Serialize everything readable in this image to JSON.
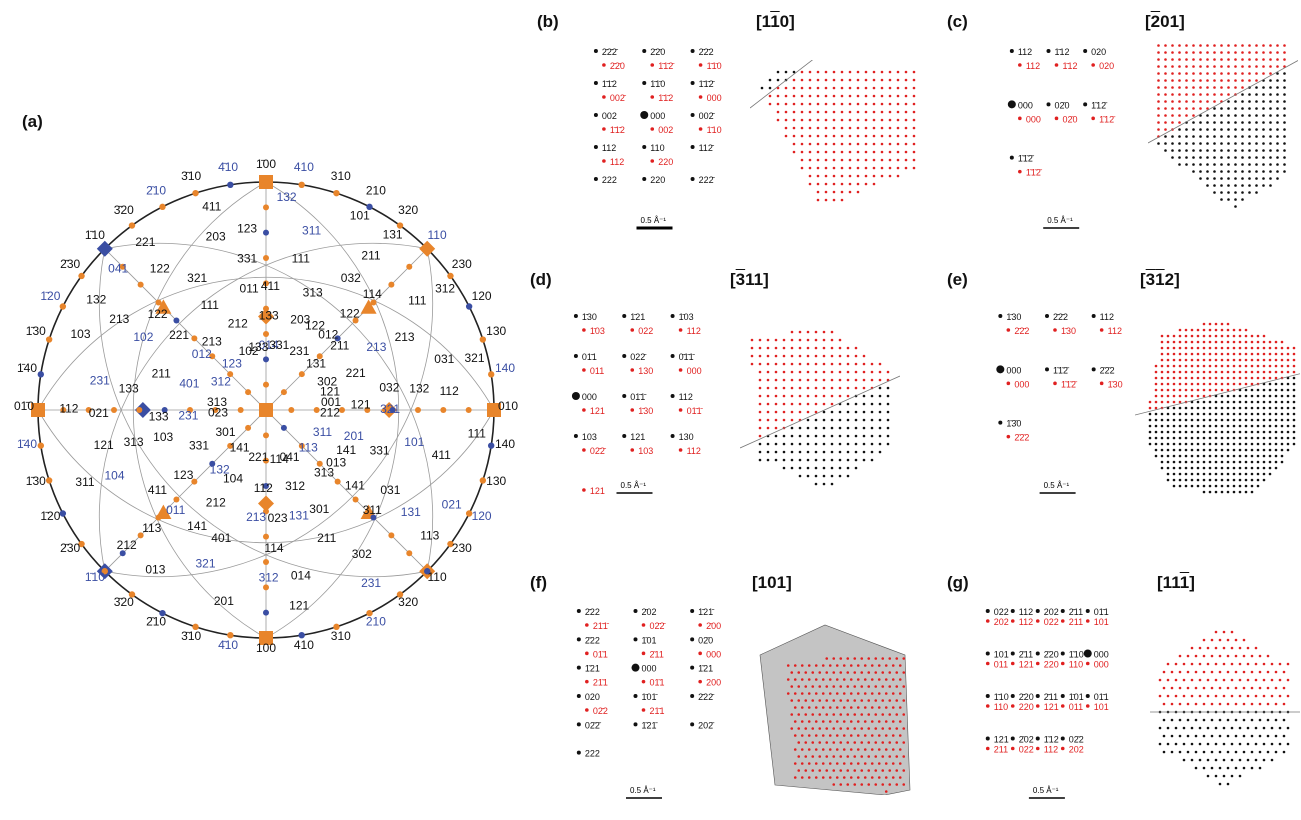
{
  "colors": {
    "orange": "#e8852b",
    "blue": "#3a4ea3",
    "black": "#111111",
    "red": "#e02020",
    "grid": "#9a9a9a",
    "gray": "#c4c4c4"
  },
  "panels": {
    "a": {
      "label": "(a)"
    },
    "b": {
      "label": "(b)",
      "title": "[1̄10]",
      "title_text": "[110]",
      "title_over": [
        1
      ]
    },
    "c": {
      "label": "(c)",
      "title_text": "[201]",
      "title_over": [
        0
      ]
    },
    "d": {
      "label": "(d)",
      "title_text": "[311]",
      "title_over": [
        0
      ]
    },
    "e": {
      "label": "(e)",
      "title_text": "[312]",
      "title_over": [
        0,
        1
      ]
    },
    "f": {
      "label": "(f)",
      "title_text": "[101]",
      "title_over": []
    },
    "g": {
      "label": "(g)",
      "title_text": "[111]",
      "title_over": [
        2
      ]
    }
  },
  "scale_bar": "0.5 Å⁻¹",
  "stereogram": {
    "labels": [
      [
        "1̄00",
        "black"
      ],
      [
        "4̄10",
        "blue"
      ],
      [
        "3̄10",
        "black"
      ],
      [
        "2̄10",
        "blue"
      ],
      [
        "3̄20",
        "black"
      ],
      [
        "1̄10",
        "black"
      ],
      [
        "2̄30",
        "black"
      ],
      [
        "1̄20",
        "blue"
      ],
      [
        "1̄30",
        "black"
      ],
      [
        "1̄40",
        "black"
      ],
      [
        "01̄0",
        "black"
      ],
      [
        "1̄40",
        "blue"
      ],
      [
        "1̄30",
        "black"
      ],
      [
        "1̄20",
        "black"
      ],
      [
        "2̄30",
        "black"
      ],
      [
        "1̄10",
        "blue"
      ],
      [
        "3̄20",
        "black"
      ],
      [
        "2̄10",
        "black"
      ],
      [
        "3̄10",
        "black"
      ],
      [
        "4̄10",
        "blue"
      ],
      [
        "100",
        "black"
      ],
      [
        "410",
        "black"
      ],
      [
        "310",
        "black"
      ],
      [
        "210",
        "blue"
      ],
      [
        "320",
        "black"
      ],
      [
        "110",
        "black"
      ],
      [
        "230",
        "black"
      ],
      [
        "120",
        "blue"
      ],
      [
        "130",
        "black"
      ],
      [
        "140",
        "black"
      ],
      [
        "010",
        "black"
      ],
      [
        "140",
        "blue"
      ],
      [
        "130",
        "black"
      ],
      [
        "120",
        "black"
      ],
      [
        "230",
        "black"
      ],
      [
        "110",
        "blue"
      ],
      [
        "320",
        "black"
      ],
      [
        "210",
        "black"
      ],
      [
        "310",
        "black"
      ],
      [
        "410",
        "blue"
      ],
      [
        "001",
        "black"
      ],
      [
        "013",
        "black"
      ],
      [
        "023",
        "black"
      ],
      [
        "011",
        "blue"
      ],
      [
        "021",
        "black"
      ],
      [
        "041",
        "blue"
      ],
      [
        "014",
        "blue"
      ],
      [
        "012",
        "black"
      ],
      [
        "032",
        "black"
      ],
      [
        "031",
        "black"
      ],
      [
        "014",
        "black"
      ],
      [
        "013",
        "black"
      ],
      [
        "023",
        "black"
      ],
      [
        "012",
        "blue"
      ],
      [
        "011",
        "black"
      ],
      [
        "032",
        "black"
      ],
      [
        "031",
        "black"
      ],
      [
        "021",
        "blue"
      ],
      [
        "041",
        "black"
      ],
      [
        "104",
        "black"
      ],
      [
        "103",
        "black"
      ],
      [
        "102",
        "blue"
      ],
      [
        "203",
        "black"
      ],
      [
        "101",
        "black"
      ],
      [
        "302",
        "black"
      ],
      [
        "201",
        "blue"
      ],
      [
        "301",
        "black"
      ],
      [
        "401",
        "black"
      ],
      [
        "104",
        "blue"
      ],
      [
        "103",
        "black"
      ],
      [
        "102",
        "black"
      ],
      [
        "203",
        "black"
      ],
      [
        "213",
        "blue"
      ],
      [
        "101",
        "blue"
      ],
      [
        "302",
        "black"
      ],
      [
        "201",
        "black"
      ],
      [
        "301",
        "black"
      ],
      [
        "401",
        "blue"
      ],
      [
        "111",
        "black"
      ],
      [
        "111",
        "black"
      ],
      [
        "111",
        "black"
      ],
      [
        "111",
        "black"
      ],
      [
        "113",
        "blue"
      ],
      [
        "112",
        "black"
      ],
      [
        "123",
        "black"
      ],
      [
        "133",
        "black"
      ],
      [
        "122",
        "black"
      ],
      [
        "132",
        "blue"
      ],
      [
        "131",
        "black"
      ],
      [
        "121",
        "black"
      ],
      [
        "141",
        "black"
      ],
      [
        "114",
        "black"
      ],
      [
        "113",
        "black"
      ],
      [
        "112",
        "black"
      ],
      [
        "123",
        "blue"
      ],
      [
        "133",
        "black"
      ],
      [
        "122",
        "black"
      ],
      [
        "132",
        "black"
      ],
      [
        "131",
        "blue"
      ],
      [
        "121",
        "black"
      ],
      [
        "141",
        "black"
      ],
      [
        "231",
        "blue"
      ],
      [
        "221",
        "black"
      ],
      [
        "331",
        "black"
      ],
      [
        "211",
        "black"
      ],
      [
        "321",
        "black"
      ],
      [
        "311",
        "blue"
      ],
      [
        "312",
        "black"
      ],
      [
        "212",
        "black"
      ],
      [
        "313",
        "black"
      ],
      [
        "213",
        "black"
      ],
      [
        "411",
        "black"
      ],
      [
        "231",
        "black"
      ],
      [
        "221",
        "black"
      ],
      [
        "331",
        "black"
      ],
      [
        "211",
        "black"
      ],
      [
        "321",
        "blue"
      ],
      [
        "311",
        "black"
      ],
      [
        "312",
        "blue"
      ],
      [
        "212",
        "black"
      ],
      [
        "313",
        "black"
      ],
      [
        "213",
        "black"
      ],
      [
        "411",
        "black"
      ],
      [
        "231",
        "blue"
      ],
      [
        "221",
        "black"
      ],
      [
        "331",
        "black"
      ],
      [
        "211",
        "black"
      ],
      [
        "321",
        "black"
      ],
      [
        "311",
        "blue"
      ],
      [
        "312",
        "black"
      ],
      [
        "212",
        "black"
      ],
      [
        "313",
        "black"
      ],
      [
        "213",
        "blue"
      ],
      [
        "411",
        "black"
      ],
      [
        "231",
        "blue"
      ],
      [
        "221",
        "black"
      ],
      [
        "331",
        "black"
      ],
      [
        "211",
        "black"
      ],
      [
        "321",
        "blue"
      ],
      [
        "311",
        "black"
      ],
      [
        "312",
        "blue"
      ],
      [
        "212",
        "black"
      ],
      [
        "313",
        "black"
      ],
      [
        "213",
        "black"
      ],
      [
        "411",
        "black"
      ],
      [
        "114",
        "black"
      ],
      [
        "112",
        "black"
      ],
      [
        "113",
        "black"
      ],
      [
        "114",
        "black"
      ],
      [
        "132",
        "blue"
      ],
      [
        "133",
        "black"
      ],
      [
        "122",
        "black"
      ],
      [
        "123",
        "black"
      ],
      [
        "131",
        "black"
      ],
      [
        "121",
        "black"
      ],
      [
        "141",
        "black"
      ],
      [
        "131",
        "blue"
      ],
      [
        "141",
        "black"
      ],
      [
        "121",
        "black"
      ],
      [
        "132",
        "black"
      ],
      [
        "133",
        "black"
      ],
      [
        "122",
        "black"
      ]
    ]
  },
  "patterns": {
    "b": {
      "black": [
        "2̄2̄2̄",
        "2̄2̄0",
        "2̄2̄2",
        "1̄1̄2",
        "1̄1̄0",
        "1̄1̄2̄",
        "002",
        "000",
        "002̄",
        "112",
        "110",
        "112̄",
        "222",
        "220",
        "222̄"
      ],
      "red": [
        "2̄2̄0",
        "1̄1̄2̄",
        "1̄1̄0",
        "002̄",
        "1̄1̄2",
        "000",
        "1̄1̄2",
        "002",
        "1̄10",
        "112",
        "220"
      ]
    },
    "c": {
      "black": [
        "112",
        "1̄12",
        "020",
        "000",
        "02̄0",
        "1̄12̄",
        "1̄1̄2̄"
      ],
      "red": [
        "112",
        "1̄12",
        "020",
        "000",
        "02̄0",
        "1̄12̄",
        "1̄1̄2̄"
      ]
    },
    "d": {
      "black": [
        "1̄30",
        "1̄21",
        "1̄03",
        "01̄1",
        "022̄",
        "0̄1̄1̄",
        "000",
        "01̄1̄",
        "112",
        "103",
        "121",
        "130"
      ],
      "red": [
        "1̄03",
        "022",
        "112",
        "011",
        "130",
        "000",
        "121",
        "1̄30",
        "01̄1̄",
        "02̄2̄",
        "103",
        "112",
        "121"
      ]
    },
    "e": {
      "black": [
        "1̄30",
        "2̄2̄2",
        "112",
        "000",
        "1̄1̄2̄",
        "2̄2̄2",
        "1̄3̄0"
      ],
      "red": [
        "2̄2̄2",
        "1̄30",
        "112",
        "000",
        "1̄1̄2̄",
        "1̄30",
        "2̄2̄2"
      ]
    },
    "f": {
      "black": [
        "2̄22",
        "2̄02",
        "1̄21̄",
        "2̄22",
        "1̄01",
        "02̄0",
        "1̄21",
        "000",
        "1̄21",
        "020",
        "1̄01̄",
        "2̄22̄",
        "02̄2̄",
        "1̄21̄",
        "202̄",
        "222"
      ],
      "red": [
        "21̄1̄",
        "02̄2̄",
        "2̄00",
        "01̄1",
        "2̄11",
        "000",
        "21̄1",
        "01̄1",
        "200",
        "02̄2",
        "21̄1"
      ]
    },
    "g": {
      "black": [
        "022",
        "112",
        "202",
        "2̄11",
        "01̄1",
        "101",
        "2̄11",
        "2̄20",
        "1̄10",
        "000",
        "1̄10",
        "2̄20",
        "2̄11",
        "1̄01",
        "01̄1",
        "121",
        "2̄02",
        "1̄12",
        "02̄2"
      ],
      "red": [
        "202",
        "112",
        "022",
        "211",
        "101",
        "011",
        "121",
        "220",
        "110",
        "000",
        "110",
        "220",
        "121",
        "011",
        "101",
        "211",
        "022",
        "112",
        "202"
      ]
    }
  }
}
